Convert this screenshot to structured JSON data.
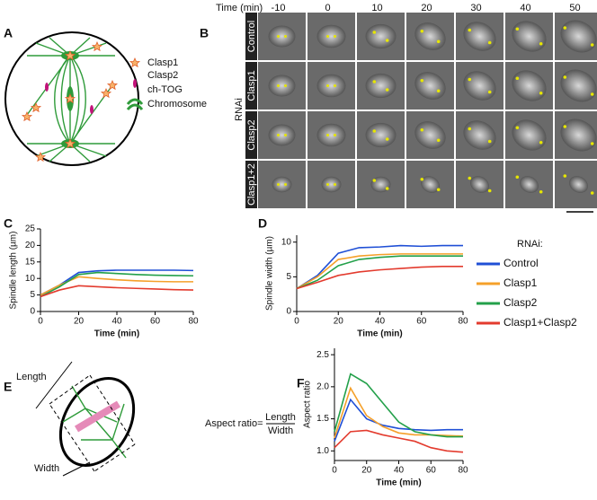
{
  "panel_labels": [
    "A",
    "B",
    "C",
    "D",
    "E",
    "F"
  ],
  "diagram_a": {
    "labels": [
      "Clasp1",
      "Clasp2",
      "ch-TOG",
      "Chromosome"
    ]
  },
  "micrographs": {
    "time_label": "Time (min)",
    "times": [
      "-10",
      "0",
      "10",
      "20",
      "30",
      "40",
      "50"
    ],
    "side_label": "RNAi",
    "rows": [
      "Control",
      "Clasp1",
      "Clasp2",
      "Clasp1+2"
    ]
  },
  "diagram_e": {
    "length": "Length",
    "width": "Width",
    "formula_prefix": "Aspect ratio=",
    "numerator": "Length",
    "denominator": "Width"
  },
  "chart_data": [
    {
      "type": "line",
      "xlabel": "Time (min)",
      "ylabel": "Spindle length (µm)",
      "x": [
        0,
        10,
        20,
        30,
        40,
        50,
        60,
        70,
        80
      ],
      "xlim": [
        0,
        80
      ],
      "xticks": [
        0,
        20,
        40,
        60,
        80
      ],
      "ylim": [
        0,
        25
      ],
      "yticks": [
        0,
        5,
        10,
        15,
        20,
        25
      ],
      "series": [
        {
          "color": "#1f4fd6",
          "values": [
            5,
            8,
            11.8,
            12.3,
            12.5,
            12.5,
            12.5,
            12.5,
            12.4
          ]
        },
        {
          "color": "#f5a02a",
          "values": [
            5,
            8,
            10.5,
            10,
            9.6,
            9.3,
            9.1,
            9,
            9
          ]
        },
        {
          "color": "#23a04a",
          "values": [
            4.5,
            7.5,
            11.2,
            11.8,
            11.5,
            11.2,
            11,
            10.9,
            10.8
          ]
        },
        {
          "color": "#e33b2e",
          "values": [
            4.5,
            6.5,
            7.8,
            7.5,
            7.2,
            7,
            6.8,
            6.6,
            6.5
          ]
        }
      ]
    },
    {
      "type": "line",
      "xlabel": "Time (min)",
      "ylabel": "Spindle width (µm)",
      "x": [
        0,
        10,
        20,
        30,
        40,
        50,
        60,
        70,
        80
      ],
      "xlim": [
        0,
        80
      ],
      "xticks": [
        0,
        20,
        40,
        60,
        80
      ],
      "ylim": [
        0,
        11
      ],
      "yticks": [
        0,
        5,
        10
      ],
      "legend_title": "RNAi:",
      "series": [
        {
          "name": "Control",
          "color": "#1f4fd6",
          "values": [
            3.3,
            5.2,
            8.4,
            9.2,
            9.3,
            9.5,
            9.4,
            9.5,
            9.5
          ]
        },
        {
          "name": "Clasp1",
          "color": "#f5a02a",
          "values": [
            3.3,
            5,
            7.5,
            8,
            8.2,
            8.3,
            8.3,
            8.3,
            8.3
          ]
        },
        {
          "name": "Clasp2",
          "color": "#23a04a",
          "values": [
            3.3,
            4.5,
            6.6,
            7.5,
            7.8,
            8,
            8,
            8,
            8
          ]
        },
        {
          "name": "Clasp1+Clasp2",
          "color": "#e33b2e",
          "values": [
            3.3,
            4.2,
            5.2,
            5.7,
            6,
            6.2,
            6.4,
            6.5,
            6.5
          ]
        }
      ]
    },
    {
      "type": "line",
      "xlabel": "Time (min)",
      "ylabel": "Aspect ratio",
      "x": [
        0,
        10,
        20,
        30,
        40,
        50,
        60,
        70,
        80
      ],
      "xlim": [
        0,
        80
      ],
      "xticks": [
        0,
        20,
        40,
        60,
        80
      ],
      "ylim": [
        0.85,
        2.6
      ],
      "yticks": [
        {
          "value": 1,
          "label": "1.0"
        },
        1.5,
        {
          "value": 2,
          "label": "2.0"
        },
        2.5
      ],
      "series": [
        {
          "color": "#1f4fd6",
          "values": [
            1.15,
            1.8,
            1.5,
            1.4,
            1.35,
            1.33,
            1.32,
            1.33,
            1.33
          ]
        },
        {
          "color": "#f5a02a",
          "values": [
            1.2,
            1.98,
            1.55,
            1.38,
            1.28,
            1.25,
            1.25,
            1.24,
            1.23
          ]
        },
        {
          "color": "#23a04a",
          "values": [
            1.3,
            2.2,
            2.05,
            1.75,
            1.45,
            1.3,
            1.25,
            1.22,
            1.22
          ]
        },
        {
          "color": "#e33b2e",
          "values": [
            1.05,
            1.3,
            1.32,
            1.25,
            1.2,
            1.15,
            1.05,
            1,
            0.98
          ]
        }
      ]
    }
  ]
}
